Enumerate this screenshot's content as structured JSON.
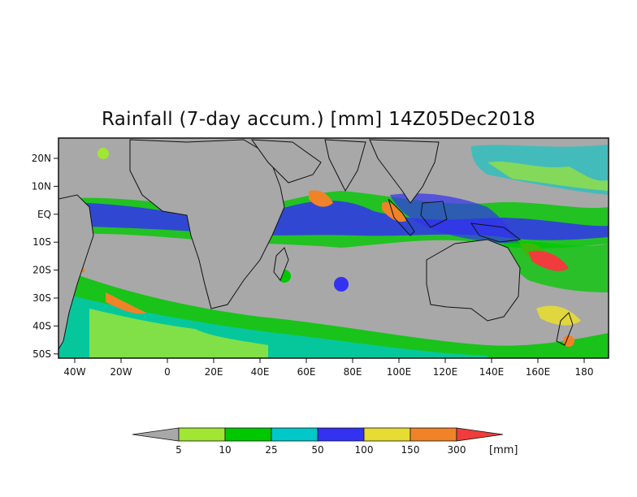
{
  "title": "Rainfall (7-day accum.) [mm] 14Z05Dec2018",
  "lat_ticks": [
    "20N",
    "10N",
    "EQ",
    "10S",
    "20S",
    "30S",
    "40S",
    "50S"
  ],
  "lon_ticks": [
    "40W",
    "20W",
    "0",
    "20E",
    "40E",
    "60E",
    "80E",
    "100E",
    "120E",
    "140E",
    "160E",
    "180"
  ],
  "colorbar": {
    "thresholds": [
      "5",
      "10",
      "25",
      "50",
      "100",
      "150",
      "300"
    ],
    "unit": "[mm]",
    "colors": [
      "#a8a8a8",
      "#a0e632",
      "#00c800",
      "#00c8c8",
      "#3232f0",
      "#e6dc32",
      "#f08228",
      "#f03c3c"
    ]
  },
  "background_color": "#a8a8a8"
}
